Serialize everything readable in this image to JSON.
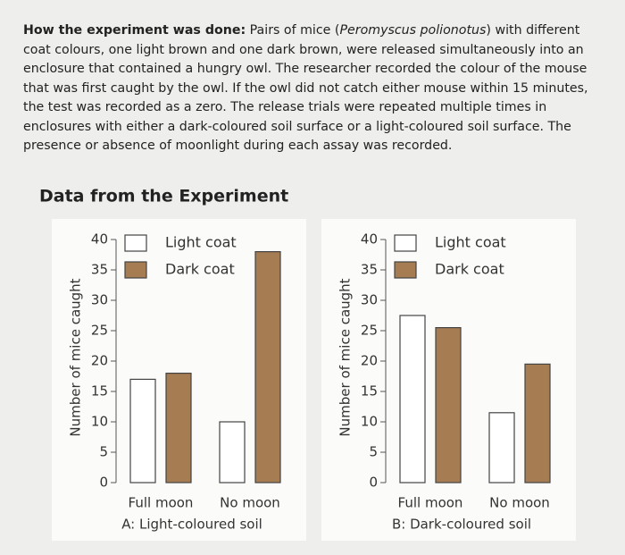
{
  "text": [
    "How the experiment was done:",
    " Pairs of mice (",
    "Peromyscus polionotus",
    ") with different coat colours, one light brown and one dark brown, were released simultaneously into an enclosure that contained a hungry owl. The researcher recorded the colour of the mouse that was first caught by the owl. If the owl did not catch either mouse within 15 minutes, the test was recorded as a zero. The release trials were repeated multiple times in enclosures with either a dark-coloured soil surface or a light-coloured soil surface. The presence or absence of moonlight during each assay was recorded."
  ],
  "heading": "Data from the Experiment",
  "chart_data": [
    {
      "type": "bar",
      "title": "A: Light-coloured soil",
      "y_label": "Number of mice caught",
      "categories": [
        "Full moon",
        "No moon"
      ],
      "series": [
        {
          "name": "Light coat",
          "color": "#ffffff",
          "values": [
            17,
            10
          ]
        },
        {
          "name": "Dark coat",
          "color": "#a67c52",
          "values": [
            18,
            38
          ]
        }
      ],
      "ylim": [
        0,
        40
      ],
      "yticks": [
        0,
        5,
        10,
        15,
        20,
        25,
        30,
        35,
        40
      ]
    },
    {
      "type": "bar",
      "title": "B: Dark-coloured soil",
      "y_label": "Number of mice caught",
      "categories": [
        "Full moon",
        "No moon"
      ],
      "series": [
        {
          "name": "Light coat",
          "color": "#ffffff",
          "values": [
            27.5,
            11.5
          ]
        },
        {
          "name": "Dark coat",
          "color": "#a67c52",
          "values": [
            25.5,
            19.5
          ]
        }
      ],
      "ylim": [
        0,
        40
      ],
      "yticks": [
        0,
        5,
        10,
        15,
        20,
        25,
        30,
        35,
        40
      ]
    }
  ]
}
